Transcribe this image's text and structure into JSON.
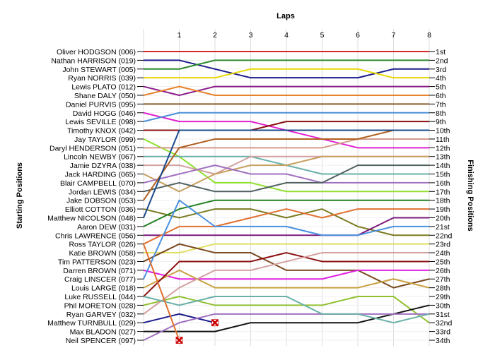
{
  "chart_data": {
    "type": "line",
    "x_title": "Laps",
    "y_left_title": "Starting Positions",
    "y_right_title": "Finishing Positions",
    "x": [
      0,
      1,
      2,
      3,
      4,
      5,
      6,
      7,
      8
    ],
    "x_tick_labels": [
      "1",
      "2",
      "3",
      "4",
      "5",
      "6",
      "7",
      "8"
    ],
    "ylim": [
      1,
      34
    ],
    "grid": true,
    "finishing_labels": [
      "1st",
      "2nd",
      "3rd",
      "4th",
      "5th",
      "6th",
      "7th",
      "8th",
      "9th",
      "10th",
      "11th",
      "12th",
      "13th",
      "14th",
      "15th",
      "16th",
      "17th",
      "18th",
      "19th",
      "20th",
      "21st",
      "22nd",
      "23rd",
      "24th",
      "25th",
      "26th",
      "27th",
      "28th",
      "29th",
      "30th",
      "31st",
      "32nd",
      "33rd",
      "34th"
    ],
    "series": [
      {
        "name": "Oliver HODGSON (006)",
        "color": "#d62828",
        "positions": [
          1,
          1,
          1,
          1,
          1,
          1,
          1,
          1,
          1
        ]
      },
      {
        "name": "Nathan HARRISON (019)",
        "color": "#1c1c8c",
        "positions": [
          2,
          2,
          3,
          4,
          4,
          4,
          4,
          3,
          3
        ]
      },
      {
        "name": "John STEWART (005)",
        "color": "#2e8b2e",
        "positions": [
          3,
          3,
          2,
          2,
          2,
          2,
          2,
          2,
          2
        ]
      },
      {
        "name": "Ryan NORRIS (039)",
        "color": "#e8d800",
        "positions": [
          4,
          4,
          4,
          3,
          3,
          3,
          3,
          4,
          4
        ]
      },
      {
        "name": "Lewis PLATO (012)",
        "color": "#8b1a8b",
        "positions": [
          5,
          6,
          5,
          5,
          5,
          5,
          5,
          5,
          5
        ]
      },
      {
        "name": "Shane DALY (050)",
        "color": "#e8822a",
        "positions": [
          6,
          5,
          6,
          6,
          6,
          6,
          6,
          6,
          6
        ]
      },
      {
        "name": "Daniel PURVIS (095)",
        "color": "#8b5a2b",
        "positions": [
          7,
          7,
          7,
          7,
          7,
          7,
          7,
          7,
          7
        ]
      },
      {
        "name": "David HOGG (046)",
        "color": "#e020d0",
        "positions": [
          8,
          9,
          9,
          9,
          10,
          11,
          12,
          12,
          12
        ]
      },
      {
        "name": "Lewis SEVILLE (098)",
        "color": "#4a90d9",
        "positions": [
          9,
          8,
          8,
          8,
          8,
          8,
          8,
          8,
          8
        ]
      },
      {
        "name": "Timothy KNOX (042)",
        "color": "#8b1010",
        "positions": [
          10,
          10,
          10,
          10,
          9,
          9,
          9,
          9,
          9
        ]
      },
      {
        "name": "Jay TAYLOR (099)",
        "color": "#90e030",
        "positions": [
          11,
          13,
          16,
          16,
          17,
          17,
          17,
          17,
          17
        ]
      },
      {
        "name": "Daryl HENDERSON (051)",
        "color": "#d49a8a",
        "positions": [
          12,
          12,
          12,
          12,
          12,
          12,
          11,
          11,
          11
        ]
      },
      {
        "name": "Lincoln NEWBY (067)",
        "color": "#6ab0a8",
        "positions": [
          13,
          13,
          13,
          13,
          14,
          15,
          15,
          15,
          15
        ]
      },
      {
        "name": "Jamie DZYRA (038)",
        "color": "#d4a0a0",
        "positions": [
          14,
          14,
          15,
          13,
          13,
          13,
          13,
          13,
          13
        ]
      },
      {
        "name": "Jack HARDING (065)",
        "color": "#c8a060",
        "positions": [
          15,
          17,
          15,
          14,
          14,
          13,
          13,
          13,
          13
        ]
      },
      {
        "name": "Blair CAMPBELL (070)",
        "color": "#a070c0",
        "positions": [
          16,
          15,
          14,
          15,
          15,
          16,
          16,
          16,
          16
        ]
      },
      {
        "name": "Jordan LEWIS (034)",
        "color": "#506060",
        "positions": [
          17,
          16,
          17,
          17,
          16,
          16,
          14,
          14,
          14
        ]
      },
      {
        "name": "Jake DOBSON (053)",
        "color": "#b06020",
        "positions": [
          18,
          12,
          11,
          11,
          11,
          11,
          11,
          10,
          10
        ]
      },
      {
        "name": "Elliott COTTON (036)",
        "color": "#7a7a20",
        "positions": [
          19,
          20,
          19,
          19,
          20,
          19,
          21,
          22,
          22
        ]
      },
      {
        "name": "Matthew NICOLSON (048)",
        "color": "#1a4a8a",
        "positions": [
          20,
          10,
          10,
          10,
          10,
          10,
          10,
          10,
          10
        ]
      },
      {
        "name": "Aaron DEW (031)",
        "color": "#208020",
        "positions": [
          21,
          19,
          18,
          18,
          18,
          18,
          18,
          18,
          18
        ]
      },
      {
        "name": "Chris LAWRENCE (056)",
        "color": "#7a1a7a",
        "positions": [
          22,
          22,
          22,
          22,
          22,
          22,
          22,
          20,
          20
        ]
      },
      {
        "name": "Ross TAYLOR (026)",
        "color": "#e07030",
        "positions": [
          23,
          21,
          21,
          20,
          19,
          20,
          19,
          19,
          19
        ]
      },
      {
        "name": "Katie BROWN (058)",
        "color": "#e0e060",
        "positions": [
          24,
          24,
          23,
          23,
          23,
          23,
          23,
          23,
          23
        ]
      },
      {
        "name": "Tim PATTERSON (023)",
        "color": "#7a4a20",
        "positions": [
          25,
          23,
          24,
          24,
          26,
          26,
          26,
          28,
          27
        ]
      },
      {
        "name": "Darren BROWN (071)",
        "color": "#e020e0",
        "positions": [
          26,
          27,
          27,
          27,
          27,
          27,
          26,
          26,
          26
        ]
      },
      {
        "name": "Craig LINSCER (077)",
        "color": "#4a90e0",
        "positions": [
          27,
          18,
          21,
          21,
          21,
          22,
          22,
          21,
          21
        ]
      },
      {
        "name": "Louis LARGE (018)",
        "color": "#c8a040",
        "positions": [
          28,
          26,
          28,
          28,
          28,
          28,
          28,
          27,
          28
        ]
      },
      {
        "name": "Luke RUSSELL (044)",
        "color": "#8b1010",
        "positions": [
          29,
          25,
          25,
          25,
          24,
          25,
          25,
          25,
          25
        ]
      },
      {
        "name": "Phil MORETON (028)",
        "color": "#90c030",
        "positions": [
          30,
          29,
          30,
          30,
          30,
          30,
          29,
          29,
          32
        ]
      },
      {
        "name": "Ryan GARVEY (032)",
        "color": "#d4a0a0",
        "positions": [
          31,
          28,
          26,
          26,
          25,
          24,
          24,
          24,
          24
        ]
      },
      {
        "name": "Matthew TURNBULL (029)",
        "color": "#1c1c8c",
        "positions": [
          32,
          31,
          32,
          null,
          null,
          null,
          null,
          null,
          null
        ],
        "retired_at_lap": 2
      },
      {
        "name": "Max BLADON (027)",
        "color": "#111111",
        "positions": [
          33,
          33,
          33,
          32,
          32,
          32,
          32,
          31,
          30
        ]
      },
      {
        "name": "Neil SPENCER (097)",
        "color": "#a070c0",
        "positions": [
          34,
          32,
          31,
          31,
          31,
          31,
          31,
          31,
          31
        ]
      },
      {
        "name": "",
        "color": "#6ab0a8",
        "positions": [
          29,
          30,
          29,
          29,
          29,
          31,
          31,
          32,
          31
        ]
      },
      {
        "name": "",
        "color": "#e07030",
        "positions": [
          23,
          34,
          null,
          null,
          null,
          null,
          null,
          null,
          null
        ],
        "retired_at_lap": 1
      }
    ]
  }
}
